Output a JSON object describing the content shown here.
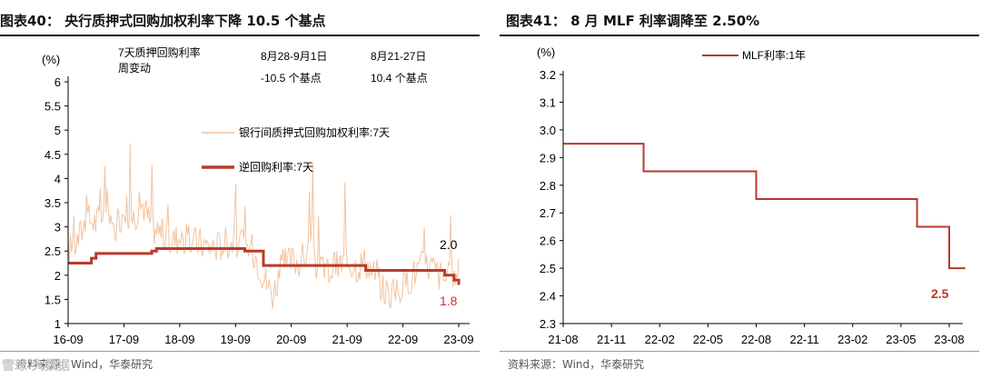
{
  "panel1": {
    "title": "图表40：  央行质押式回购加权利率下降 10.5 个基点",
    "source": "资料来源：Wind，华泰研究",
    "unit": "(%)",
    "annotation": {
      "label_line1": "7天质押回购利率",
      "label_line2": "周变动",
      "col1_header": "8月28-9月1日",
      "col1_value": "-10.5 个基点",
      "col2_header": "8月21-27日",
      "col2_value": "10.4 个基点"
    },
    "end_labels": {
      "repo": "2.0",
      "reverse_repo": "1.8"
    },
    "colors": {
      "repo": "#f2c3a0",
      "reverse_repo": "#b83a2a",
      "end_label_reverse": "#b83a2a"
    }
  },
  "panel2": {
    "title": "图表41：  8 月 MLF 利率调降至 2.50%",
    "source": "资料来源：Wind，华泰研究",
    "unit": "(%)",
    "end_label": "2.5",
    "colors": {
      "mlf": "#b83a2a",
      "end_label": "#b83a2a"
    }
  },
  "watermark": "雪球 大数据",
  "chart_data": [
    {
      "type": "line",
      "x_ticks": [
        "16-09",
        "17-09",
        "18-09",
        "19-09",
        "20-09",
        "21-09",
        "22-09",
        "23-09"
      ],
      "ylim": [
        1,
        6
      ],
      "y_ticks": [
        "1",
        "1.5",
        "2",
        "2.5",
        "3",
        "3.5",
        "4",
        "4.5",
        "5",
        "5.5",
        "6"
      ],
      "series": [
        {
          "name": "银行间质押式回购加权利率:7天",
          "x": [
            "2016-09",
            "2016-11",
            "2017-01",
            "2017-03",
            "2017-05",
            "2017-07",
            "2017-09",
            "2017-11",
            "2018-01",
            "2018-03",
            "2018-05",
            "2018-07",
            "2018-09",
            "2018-11",
            "2019-01",
            "2019-03",
            "2019-05",
            "2019-07",
            "2019-09",
            "2019-11",
            "2020-01",
            "2020-03",
            "2020-05",
            "2020-07",
            "2020-09",
            "2020-11",
            "2021-01",
            "2021-03",
            "2021-05",
            "2021-07",
            "2021-09",
            "2021-11",
            "2022-01",
            "2022-03",
            "2022-05",
            "2022-07",
            "2022-09",
            "2022-11",
            "2023-01",
            "2023-03",
            "2023-05",
            "2023-07",
            "2023-09"
          ],
          "y": [
            2.5,
            2.7,
            3.2,
            3.1,
            3.3,
            2.9,
            3.4,
            3.2,
            3.5,
            3.0,
            2.9,
            2.7,
            2.8,
            2.7,
            2.7,
            2.6,
            2.6,
            2.7,
            2.7,
            2.6,
            2.5,
            2.0,
            1.6,
            2.2,
            2.3,
            2.3,
            2.5,
            2.1,
            2.1,
            2.2,
            2.3,
            2.2,
            2.3,
            2.0,
            1.7,
            1.6,
            1.8,
            2.0,
            2.2,
            2.2,
            2.0,
            1.9,
            2.0
          ]
        },
        {
          "name": "逆回购利率:7天",
          "x": [
            "2016-09",
            "2017-02",
            "2017-03",
            "2018-03",
            "2018-04",
            "2019-11",
            "2020-03",
            "2022-01",
            "2023-06",
            "2023-08",
            "2023-09"
          ],
          "y": [
            2.25,
            2.35,
            2.45,
            2.5,
            2.55,
            2.5,
            2.2,
            2.1,
            2.0,
            1.9,
            1.8
          ]
        }
      ]
    },
    {
      "type": "line",
      "x_ticks": [
        "21-08",
        "21-11",
        "22-02",
        "22-05",
        "22-08",
        "22-11",
        "23-02",
        "23-05",
        "23-08"
      ],
      "ylim": [
        2.3,
        3.2
      ],
      "y_ticks": [
        "2.3",
        "2.4",
        "2.5",
        "2.6",
        "2.7",
        "2.8",
        "2.9",
        "3.0",
        "3.1",
        "3.2"
      ],
      "series": [
        {
          "name": "MLF利率:1年",
          "x": [
            "2021-08",
            "2022-01",
            "2022-08",
            "2023-06",
            "2023-08",
            "2023-09"
          ],
          "y": [
            2.95,
            2.85,
            2.75,
            2.65,
            2.5,
            2.5
          ]
        }
      ]
    }
  ]
}
